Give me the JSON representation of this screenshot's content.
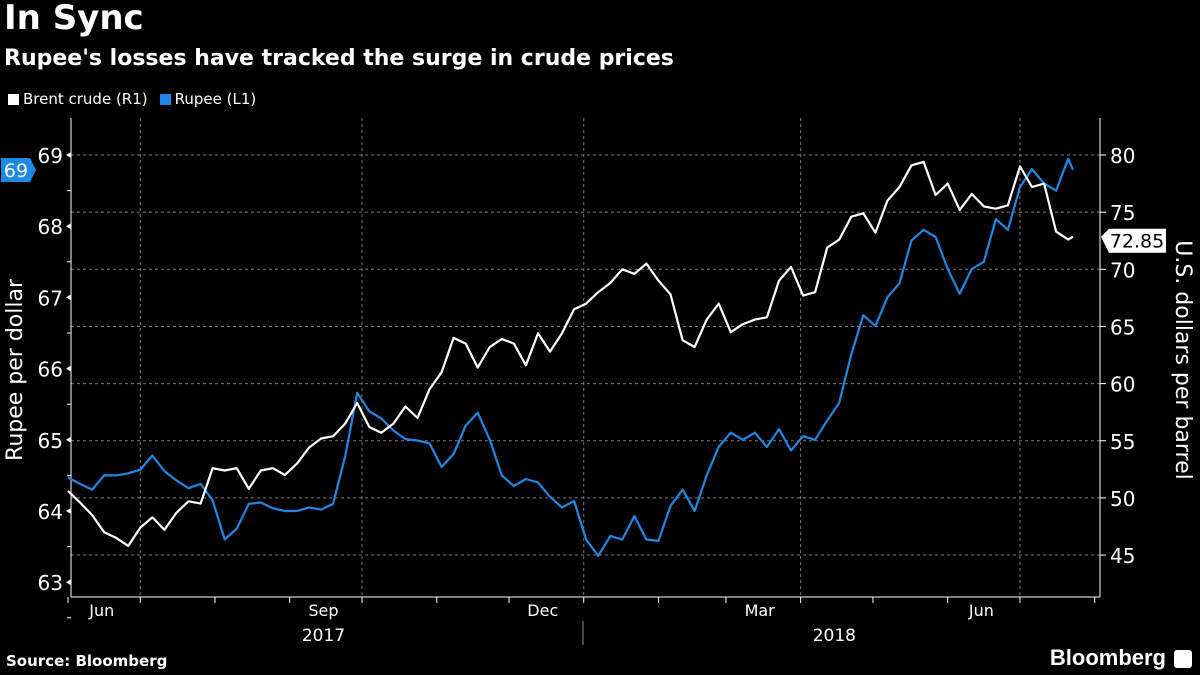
{
  "header": {
    "title": "In Sync",
    "subtitle": "Rupee's losses have tracked the surge in crude prices"
  },
  "footer": {
    "source": "Source: Bloomberg",
    "brand": "Bloomberg"
  },
  "colors": {
    "background": "#000000",
    "brent": "#ffffff",
    "rupee": "#1e88e5",
    "grid": "#666666"
  },
  "chart_data": {
    "type": "line",
    "title": "In Sync",
    "subtitle": "Rupee's losses have tracked the surge in crude prices",
    "legend_position": "top-left",
    "grid": true,
    "left_axis": {
      "label": "Rupee per dollar",
      "range": [
        62.8,
        69.5
      ],
      "ticks": [
        "63",
        "64",
        "65",
        "66",
        "67",
        "68",
        "69"
      ]
    },
    "right_axis": {
      "label": "U.S. dollars per barrel",
      "range": [
        43,
        83
      ],
      "ticks": [
        "45",
        "50",
        "55",
        "60",
        "65",
        "70",
        "75",
        "80"
      ]
    },
    "x_axis": {
      "month_labels": [
        {
          "label": "Jun",
          "date": "2017-06-15"
        },
        {
          "label": "Sep",
          "date": "2017-09-15"
        },
        {
          "label": "Dec",
          "date": "2017-12-15"
        },
        {
          "label": "Mar",
          "date": "2018-03-15"
        },
        {
          "label": "Jun",
          "date": "2018-06-15"
        }
      ],
      "year_labels": [
        {
          "label": "2017",
          "date": "2017-09-15"
        },
        {
          "label": "2018",
          "date": "2018-04-15"
        }
      ],
      "range": [
        "2017-06-01",
        "2018-07-25"
      ]
    },
    "dates": [
      "2017-06-01",
      "2017-06-06",
      "2017-06-11",
      "2017-06-16",
      "2017-06-21",
      "2017-06-26",
      "2017-07-01",
      "2017-07-06",
      "2017-07-11",
      "2017-07-16",
      "2017-07-21",
      "2017-07-26",
      "2017-07-31",
      "2017-08-05",
      "2017-08-10",
      "2017-08-15",
      "2017-08-20",
      "2017-08-25",
      "2017-08-30",
      "2017-09-04",
      "2017-09-09",
      "2017-09-14",
      "2017-09-19",
      "2017-09-24",
      "2017-09-29",
      "2017-10-04",
      "2017-10-09",
      "2017-10-14",
      "2017-10-19",
      "2017-10-24",
      "2017-10-29",
      "2017-11-03",
      "2017-11-08",
      "2017-11-13",
      "2017-11-18",
      "2017-11-23",
      "2017-11-28",
      "2017-12-03",
      "2017-12-08",
      "2017-12-13",
      "2017-12-18",
      "2017-12-23",
      "2017-12-28",
      "2018-01-02",
      "2018-01-07",
      "2018-01-12",
      "2018-01-17",
      "2018-01-22",
      "2018-01-27",
      "2018-02-01",
      "2018-02-06",
      "2018-02-11",
      "2018-02-16",
      "2018-02-21",
      "2018-02-26",
      "2018-03-03",
      "2018-03-08",
      "2018-03-13",
      "2018-03-18",
      "2018-03-23",
      "2018-03-28",
      "2018-04-02",
      "2018-04-07",
      "2018-04-12",
      "2018-04-17",
      "2018-04-22",
      "2018-04-27",
      "2018-05-02",
      "2018-05-07",
      "2018-05-12",
      "2018-05-17",
      "2018-05-22",
      "2018-05-27",
      "2018-06-01",
      "2018-06-06",
      "2018-06-11",
      "2018-06-16",
      "2018-06-21",
      "2018-06-26",
      "2018-07-01",
      "2018-07-06",
      "2018-07-11",
      "2018-07-16",
      "2018-07-21",
      "2018-07-23"
    ],
    "series": [
      {
        "name": "Brent crude (R1)",
        "axis": "right",
        "color": "#ffffff",
        "last_value_label": "72.85",
        "values": [
          50.6,
          49.6,
          48.5,
          47.0,
          46.5,
          45.8,
          47.4,
          48.3,
          47.2,
          48.7,
          49.7,
          49.5,
          52.6,
          52.4,
          52.6,
          50.8,
          52.4,
          52.6,
          52.0,
          53.0,
          54.4,
          55.2,
          55.4,
          56.5,
          58.3,
          56.2,
          55.7,
          56.5,
          58.0,
          57.0,
          59.5,
          61.0,
          64.0,
          63.5,
          61.4,
          63.2,
          63.9,
          63.5,
          61.6,
          64.4,
          62.8,
          64.4,
          66.5,
          67.0,
          68.0,
          68.8,
          70.0,
          69.6,
          70.5,
          69.0,
          67.8,
          63.8,
          63.2,
          65.6,
          67.0,
          64.5,
          65.2,
          65.6,
          65.8,
          69.0,
          70.2,
          67.7,
          68.0,
          71.9,
          72.6,
          74.6,
          74.9,
          73.2,
          76.0,
          77.2,
          79.1,
          79.4,
          76.5,
          77.5,
          75.2,
          76.6,
          75.5,
          75.3,
          75.6,
          79.0,
          77.2,
          77.5,
          73.3,
          72.6,
          72.85
        ]
      },
      {
        "name": "Rupee (L1)",
        "axis": "left",
        "color": "#1e88e5",
        "last_value_label": "69",
        "values": [
          64.47,
          64.38,
          64.3,
          64.5,
          64.5,
          64.53,
          64.58,
          64.78,
          64.56,
          64.43,
          64.32,
          64.38,
          64.15,
          63.6,
          63.75,
          64.1,
          64.12,
          64.04,
          64.0,
          64.0,
          64.05,
          64.02,
          64.1,
          64.77,
          65.66,
          65.4,
          65.3,
          65.13,
          65.01,
          64.99,
          64.95,
          64.62,
          64.8,
          65.2,
          65.38,
          65.0,
          64.5,
          64.35,
          64.45,
          64.4,
          64.2,
          64.05,
          64.14,
          63.6,
          63.37,
          63.65,
          63.6,
          63.93,
          63.6,
          63.58,
          64.07,
          64.3,
          64.0,
          64.5,
          64.9,
          65.1,
          65.0,
          65.1,
          64.9,
          65.15,
          64.85,
          65.05,
          65.0,
          65.27,
          65.52,
          66.2,
          66.75,
          66.6,
          67.0,
          67.2,
          67.8,
          67.95,
          67.85,
          67.4,
          67.05,
          67.4,
          67.5,
          68.1,
          67.95,
          68.55,
          68.8,
          68.6,
          68.5,
          68.95,
          68.79
        ]
      }
    ]
  }
}
